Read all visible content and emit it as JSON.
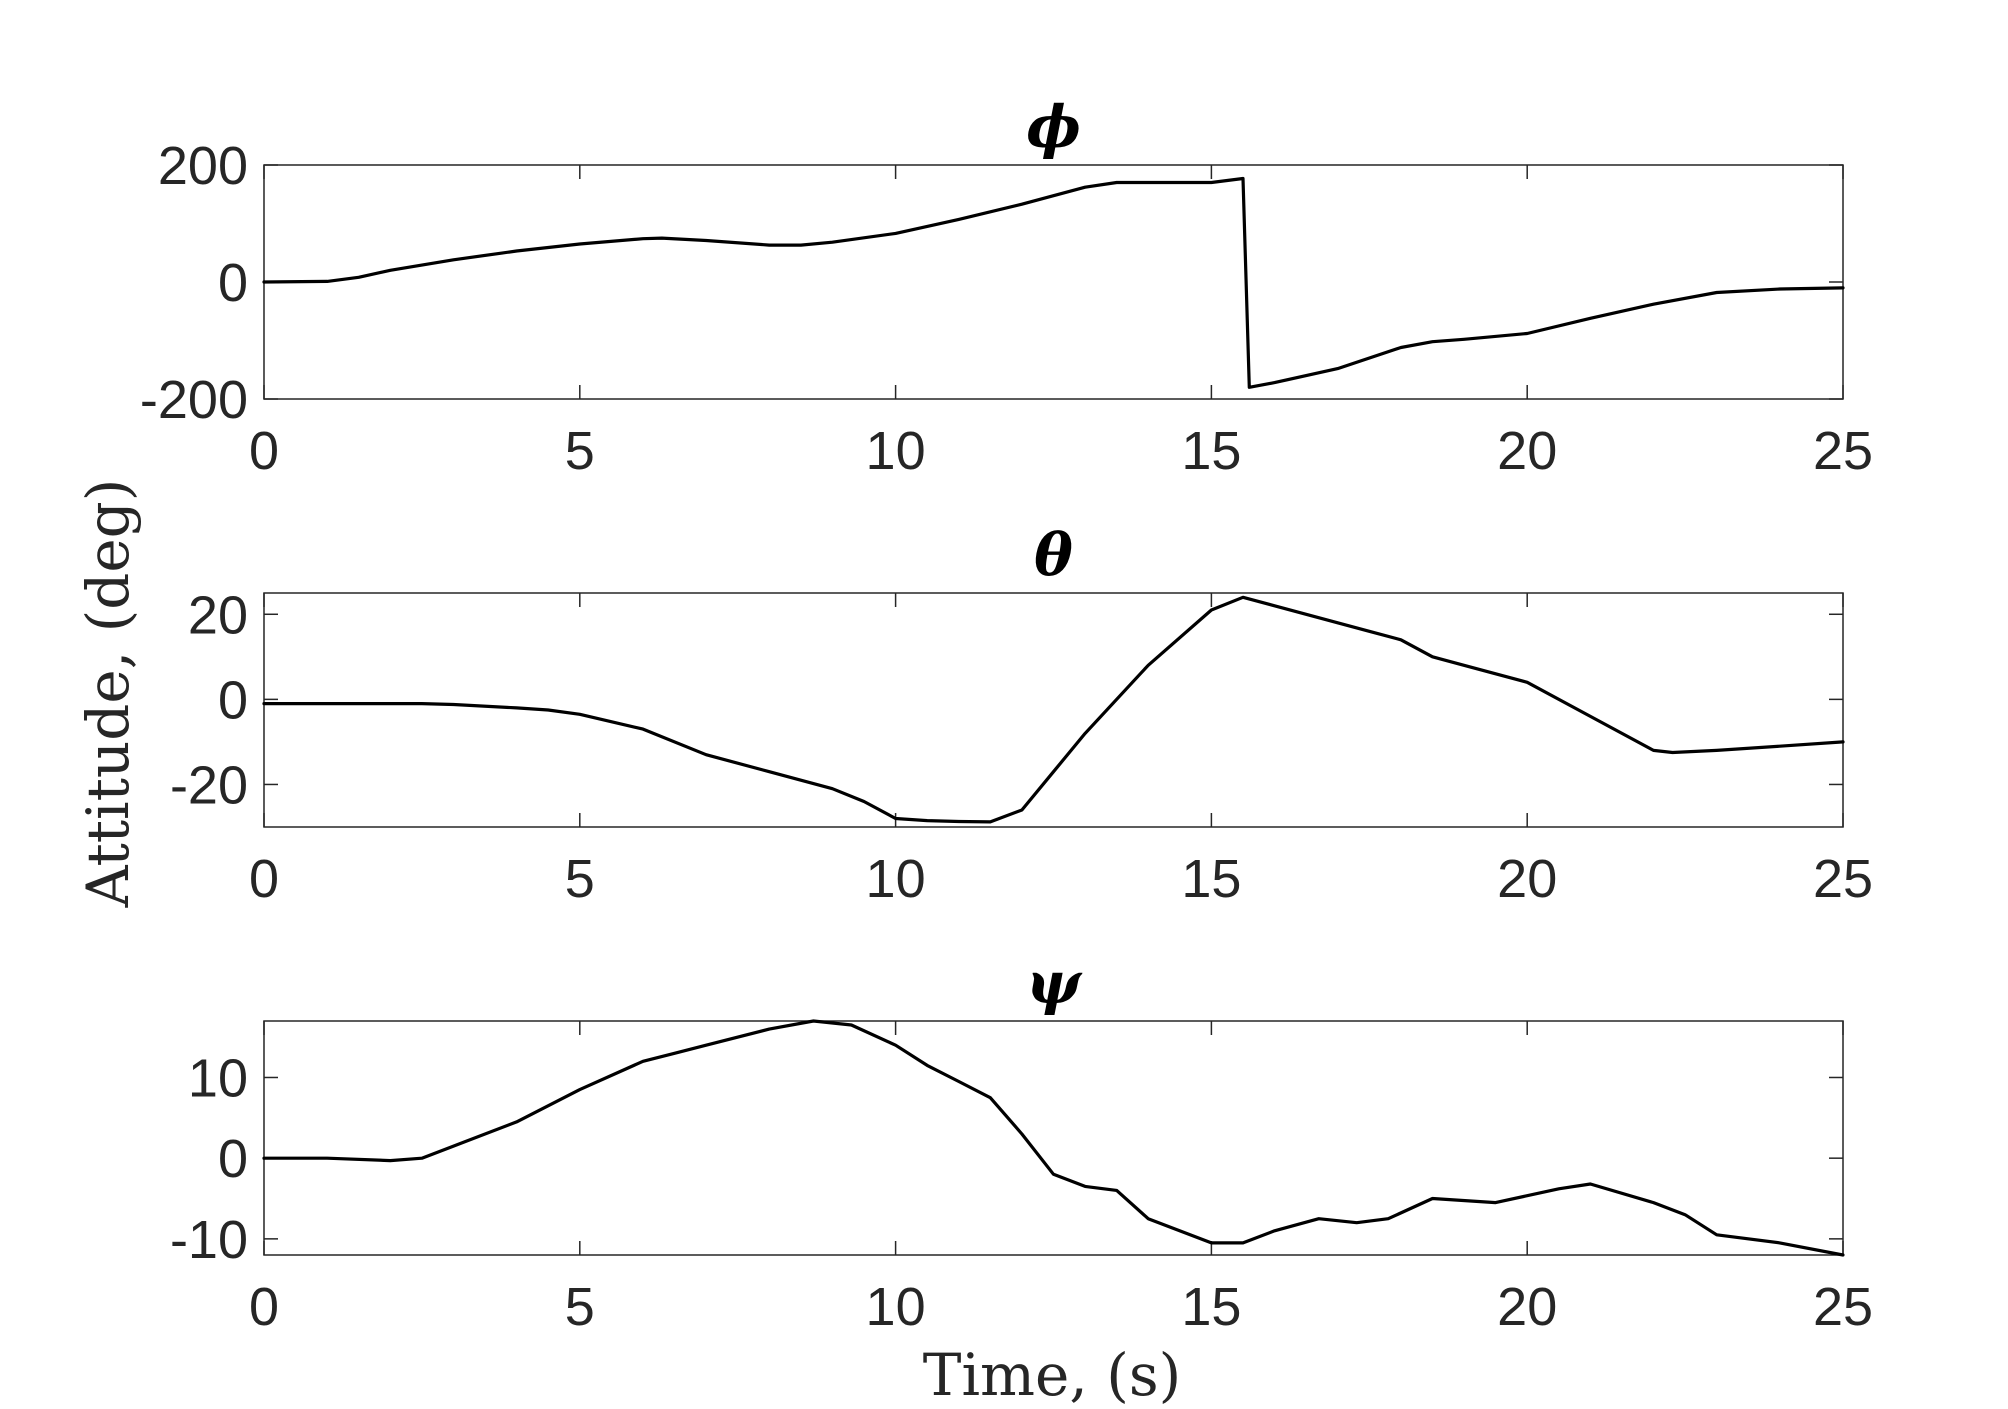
{
  "figure": {
    "ylabel": "Attitude, (deg)",
    "xlabel": "Time, (s)"
  },
  "chart_data": [
    {
      "type": "line",
      "title": "ϕ",
      "xlim": [
        0,
        25
      ],
      "ylim": [
        -200,
        200
      ],
      "xticks": [
        "0",
        "5",
        "10",
        "15",
        "20",
        "25"
      ],
      "yticks": [
        "200",
        "0",
        "-200"
      ],
      "grid": true,
      "series": [
        {
          "color": "#000000",
          "x": [
            0,
            1,
            1.5,
            2,
            3,
            4,
            5,
            6,
            6.3,
            7,
            8,
            8.5,
            9,
            10,
            11,
            12,
            13,
            13.5,
            14,
            15,
            15.5,
            15.6,
            16,
            17,
            18,
            18.5,
            19,
            20,
            21,
            22,
            23,
            24,
            25
          ],
          "y": [
            0,
            1,
            8,
            20,
            38,
            53,
            65,
            74,
            75,
            71,
            63,
            63,
            68,
            83,
            107,
            133,
            162,
            170,
            170,
            170,
            177,
            -180,
            -172,
            -148,
            -112,
            -102,
            -98,
            -88,
            -62,
            -38,
            -18,
            -12,
            -10
          ]
        }
      ]
    },
    {
      "type": "line",
      "title": "θ",
      "xlim": [
        0,
        25
      ],
      "ylim": [
        -30,
        25
      ],
      "xticks": [
        "0",
        "5",
        "10",
        "15",
        "20",
        "25"
      ],
      "yticks": [
        "20",
        "0",
        "-20"
      ],
      "grid": true,
      "series": [
        {
          "color": "#000000",
          "x": [
            0,
            2.5,
            3,
            4,
            4.5,
            5,
            6,
            7,
            8,
            9,
            9.5,
            10,
            10.5,
            11,
            11.5,
            12,
            12.5,
            13,
            14,
            15,
            15.5,
            16,
            17,
            17.5,
            18,
            18.5,
            19,
            20,
            21,
            22,
            22.3,
            23,
            24,
            25
          ],
          "y": [
            -1,
            -1,
            -1.2,
            -2,
            -2.5,
            -3.5,
            -7,
            -13,
            -17,
            -21,
            -24,
            -28,
            -28.5,
            -28.7,
            -28.8,
            -26,
            -17,
            -8,
            8,
            21,
            24,
            22,
            18,
            16,
            14,
            10,
            8,
            4,
            -4,
            -12,
            -12.5,
            -12,
            -11,
            -10
          ]
        }
      ]
    },
    {
      "type": "line",
      "title": "ψ",
      "xlim": [
        0,
        25
      ],
      "ylim": [
        -12,
        17
      ],
      "xticks": [
        "0",
        "5",
        "10",
        "15",
        "20",
        "25"
      ],
      "yticks": [
        "10",
        "0",
        "-10"
      ],
      "grid": true,
      "series": [
        {
          "color": "#000000",
          "x": [
            0,
            1,
            2,
            2.5,
            3,
            4,
            5,
            6,
            6.5,
            7,
            8,
            8.7,
            9.3,
            10,
            10.5,
            11,
            11.5,
            12,
            12.5,
            13,
            13.5,
            14,
            15,
            15.5,
            16,
            16.7,
            17.3,
            17.8,
            18.5,
            19.5,
            20.5,
            21,
            22,
            22.5,
            23,
            24,
            25
          ],
          "y": [
            0,
            0,
            -0.3,
            0,
            1.5,
            4.5,
            8.5,
            12,
            13,
            14,
            16,
            17,
            16.5,
            14,
            11.5,
            9.5,
            7.5,
            3,
            -2,
            -3.5,
            -4,
            -7.5,
            -10.5,
            -10.5,
            -9,
            -7.5,
            -8,
            -7.5,
            -5,
            -5.5,
            -3.8,
            -3.2,
            -5.5,
            -7,
            -9.5,
            -10.5,
            -12
          ]
        }
      ]
    }
  ]
}
